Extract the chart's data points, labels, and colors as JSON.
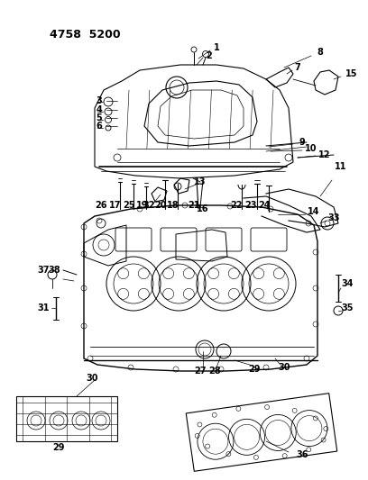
{
  "title": "4758 5200",
  "bg_color": "#ffffff",
  "line_color": "#000000",
  "fig_width": 4.08,
  "fig_height": 5.33,
  "dpi": 100
}
